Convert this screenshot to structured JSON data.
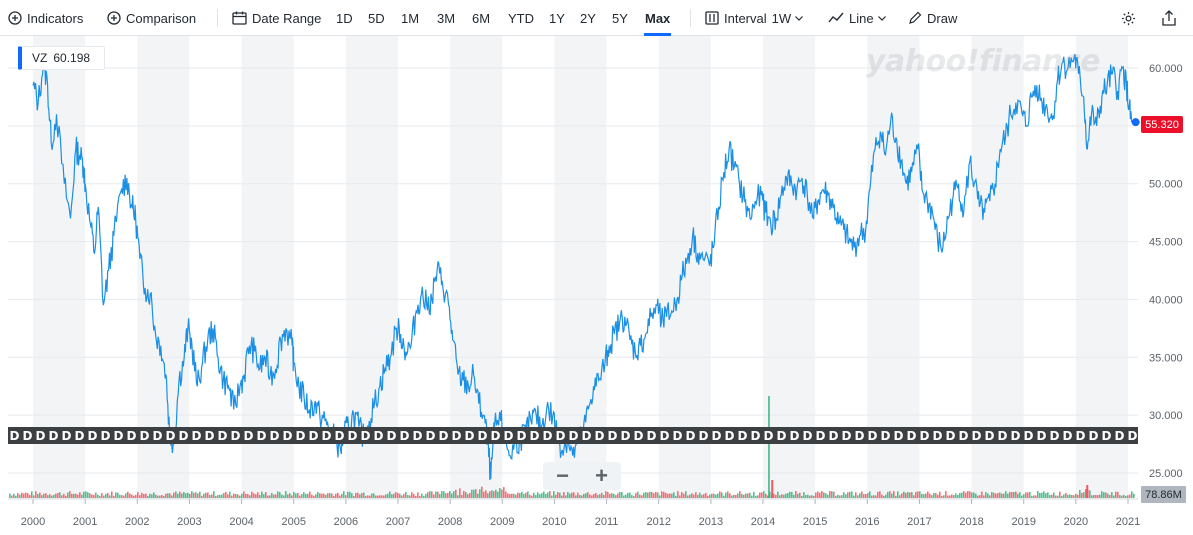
{
  "toolbar": {
    "indicators": "Indicators",
    "comparison": "Comparison",
    "date_range": "Date Range",
    "ranges": [
      "1D",
      "5D",
      "1M",
      "3M",
      "6M",
      "YTD",
      "1Y",
      "2Y",
      "5Y",
      "Max"
    ],
    "active_range": "Max",
    "interval_label": "Interval",
    "interval_value": "1W",
    "line_label": "Line",
    "draw_label": "Draw"
  },
  "legend": {
    "symbol": "VZ",
    "value": "60.198"
  },
  "current_price": "55.320",
  "volume_label": "78.86M",
  "logo_text": "yahoo!finance",
  "dividend_marker": "D",
  "colors": {
    "line": "#1a8fe3",
    "accent": "#0f69ff",
    "price_tag": "#eb0f29",
    "vol_up": "#36b37e",
    "vol_down": "#f0575f"
  },
  "chart_data": {
    "type": "line",
    "series": [
      {
        "name": "VZ"
      }
    ],
    "x_ticks": [
      "2000",
      "2001",
      "2002",
      "2003",
      "2004",
      "2005",
      "2006",
      "2007",
      "2008",
      "2009",
      "2010",
      "2011",
      "2012",
      "2013",
      "2014",
      "2015",
      "2016",
      "2017",
      "2018",
      "2019",
      "2020",
      "2021"
    ],
    "y_ticks": [
      "25.000",
      "30.000",
      "35.000",
      "40.000",
      "45.000",
      "50.000",
      "55.000",
      "60.000"
    ],
    "ylim": [
      24,
      62.5
    ],
    "xlim": [
      2000,
      2021.2
    ],
    "points": [
      [
        2000.0,
        58.5
      ],
      [
        2000.1,
        57.0
      ],
      [
        2000.2,
        60.5
      ],
      [
        2000.28,
        58.5
      ],
      [
        2000.35,
        53.5
      ],
      [
        2000.45,
        56.0
      ],
      [
        2000.6,
        50.0
      ],
      [
        2000.72,
        47.0
      ],
      [
        2000.82,
        53.0
      ],
      [
        2000.9,
        52.5
      ],
      [
        2000.97,
        51.5
      ],
      [
        2001.0,
        50.0
      ],
      [
        2001.1,
        46.5
      ],
      [
        2001.18,
        44.0
      ],
      [
        2001.25,
        48.0
      ],
      [
        2001.35,
        39.5
      ],
      [
        2001.45,
        42.5
      ],
      [
        2001.55,
        45.5
      ],
      [
        2001.7,
        49.5
      ],
      [
        2001.8,
        50.5
      ],
      [
        2001.9,
        48.0
      ],
      [
        2001.97,
        47.0
      ],
      [
        2002.05,
        43.5
      ],
      [
        2002.15,
        41.0
      ],
      [
        2002.25,
        40.5
      ],
      [
        2002.35,
        37.0
      ],
      [
        2002.45,
        36.0
      ],
      [
        2002.55,
        33.5
      ],
      [
        2002.62,
        28.5
      ],
      [
        2002.7,
        27.5
      ],
      [
        2002.8,
        33.0
      ],
      [
        2002.9,
        35.0
      ],
      [
        2002.97,
        37.5
      ],
      [
        2003.05,
        36.0
      ],
      [
        2003.15,
        32.5
      ],
      [
        2003.25,
        34.5
      ],
      [
        2003.35,
        36.5
      ],
      [
        2003.45,
        37.5
      ],
      [
        2003.55,
        35.0
      ],
      [
        2003.65,
        33.0
      ],
      [
        2003.75,
        32.5
      ],
      [
        2003.85,
        30.5
      ],
      [
        2003.97,
        32.5
      ],
      [
        2004.05,
        33.5
      ],
      [
        2004.15,
        36.0
      ],
      [
        2004.25,
        35.5
      ],
      [
        2004.35,
        34.0
      ],
      [
        2004.45,
        35.0
      ],
      [
        2004.55,
        33.5
      ],
      [
        2004.65,
        34.0
      ],
      [
        2004.75,
        36.5
      ],
      [
        2004.85,
        37.5
      ],
      [
        2004.97,
        36.0
      ],
      [
        2005.0,
        34.5
      ],
      [
        2005.1,
        32.5
      ],
      [
        2005.2,
        31.5
      ],
      [
        2005.3,
        30.5
      ],
      [
        2005.4,
        31.0
      ],
      [
        2005.5,
        30.0
      ],
      [
        2005.6,
        29.5
      ],
      [
        2005.7,
        28.5
      ],
      [
        2005.8,
        28.0
      ],
      [
        2005.9,
        27.0
      ],
      [
        2005.97,
        28.5
      ],
      [
        2006.05,
        29.0
      ],
      [
        2006.15,
        30.0
      ],
      [
        2006.25,
        29.0
      ],
      [
        2006.35,
        28.0
      ],
      [
        2006.45,
        29.5
      ],
      [
        2006.55,
        31.0
      ],
      [
        2006.65,
        32.5
      ],
      [
        2006.75,
        34.0
      ],
      [
        2006.85,
        35.0
      ],
      [
        2006.97,
        37.5
      ],
      [
        2007.05,
        37.0
      ],
      [
        2007.15,
        35.5
      ],
      [
        2007.25,
        36.0
      ],
      [
        2007.35,
        39.0
      ],
      [
        2007.45,
        40.5
      ],
      [
        2007.55,
        39.5
      ],
      [
        2007.65,
        40.0
      ],
      [
        2007.75,
        42.5
      ],
      [
        2007.85,
        41.5
      ],
      [
        2007.97,
        39.5
      ],
      [
        2008.05,
        36.5
      ],
      [
        2008.15,
        33.5
      ],
      [
        2008.25,
        33.0
      ],
      [
        2008.35,
        32.5
      ],
      [
        2008.45,
        33.5
      ],
      [
        2008.55,
        31.0
      ],
      [
        2008.65,
        30.0
      ],
      [
        2008.72,
        27.5
      ],
      [
        2008.78,
        24.5
      ],
      [
        2008.85,
        29.0
      ],
      [
        2008.97,
        29.5
      ],
      [
        2009.05,
        28.0
      ],
      [
        2009.15,
        26.5
      ],
      [
        2009.25,
        27.5
      ],
      [
        2009.35,
        28.0
      ],
      [
        2009.45,
        28.5
      ],
      [
        2009.55,
        29.5
      ],
      [
        2009.65,
        30.0
      ],
      [
        2009.75,
        29.0
      ],
      [
        2009.85,
        30.5
      ],
      [
        2009.97,
        30.0
      ],
      [
        2010.05,
        28.5
      ],
      [
        2010.15,
        27.0
      ],
      [
        2010.25,
        28.0
      ],
      [
        2010.35,
        26.5
      ],
      [
        2010.45,
        27.5
      ],
      [
        2010.55,
        28.5
      ],
      [
        2010.65,
        30.5
      ],
      [
        2010.75,
        32.5
      ],
      [
        2010.85,
        33.0
      ],
      [
        2010.97,
        34.5
      ],
      [
        2011.05,
        36.0
      ],
      [
        2011.15,
        37.0
      ],
      [
        2011.25,
        38.0
      ],
      [
        2011.35,
        38.5
      ],
      [
        2011.45,
        36.5
      ],
      [
        2011.55,
        35.5
      ],
      [
        2011.65,
        36.0
      ],
      [
        2011.75,
        37.0
      ],
      [
        2011.85,
        38.5
      ],
      [
        2011.97,
        39.5
      ],
      [
        2012.05,
        38.0
      ],
      [
        2012.15,
        38.5
      ],
      [
        2012.25,
        39.0
      ],
      [
        2012.35,
        40.0
      ],
      [
        2012.45,
        42.0
      ],
      [
        2012.55,
        43.5
      ],
      [
        2012.65,
        45.5
      ],
      [
        2012.75,
        44.0
      ],
      [
        2012.85,
        43.5
      ],
      [
        2012.97,
        43.0
      ],
      [
        2013.05,
        44.5
      ],
      [
        2013.15,
        48.0
      ],
      [
        2013.25,
        51.0
      ],
      [
        2013.35,
        53.0
      ],
      [
        2013.45,
        51.5
      ],
      [
        2013.55,
        50.0
      ],
      [
        2013.65,
        48.5
      ],
      [
        2013.75,
        47.0
      ],
      [
        2013.85,
        48.5
      ],
      [
        2013.97,
        49.0
      ],
      [
        2014.05,
        47.5
      ],
      [
        2014.15,
        46.5
      ],
      [
        2014.25,
        47.0
      ],
      [
        2014.35,
        49.0
      ],
      [
        2014.45,
        50.5
      ],
      [
        2014.55,
        50.0
      ],
      [
        2014.65,
        49.5
      ],
      [
        2014.75,
        50.5
      ],
      [
        2014.85,
        49.0
      ],
      [
        2014.97,
        47.0
      ],
      [
        2015.05,
        48.5
      ],
      [
        2015.15,
        49.5
      ],
      [
        2015.25,
        49.0
      ],
      [
        2015.35,
        48.0
      ],
      [
        2015.45,
        46.5
      ],
      [
        2015.55,
        46.0
      ],
      [
        2015.65,
        45.0
      ],
      [
        2015.75,
        44.5
      ],
      [
        2015.85,
        45.5
      ],
      [
        2015.97,
        46.0
      ],
      [
        2016.05,
        49.5
      ],
      [
        2016.15,
        53.0
      ],
      [
        2016.25,
        54.5
      ],
      [
        2016.35,
        52.5
      ],
      [
        2016.45,
        55.5
      ],
      [
        2016.55,
        54.0
      ],
      [
        2016.65,
        52.0
      ],
      [
        2016.75,
        50.0
      ],
      [
        2016.85,
        51.0
      ],
      [
        2016.97,
        53.0
      ],
      [
        2017.05,
        49.5
      ],
      [
        2017.15,
        48.5
      ],
      [
        2017.25,
        47.5
      ],
      [
        2017.35,
        45.0
      ],
      [
        2017.45,
        44.5
      ],
      [
        2017.55,
        47.0
      ],
      [
        2017.65,
        49.0
      ],
      [
        2017.75,
        50.0
      ],
      [
        2017.85,
        47.5
      ],
      [
        2017.97,
        52.0
      ],
      [
        2018.05,
        50.0
      ],
      [
        2018.15,
        48.0
      ],
      [
        2018.25,
        47.5
      ],
      [
        2018.35,
        48.5
      ],
      [
        2018.45,
        50.0
      ],
      [
        2018.55,
        53.0
      ],
      [
        2018.65,
        54.0
      ],
      [
        2018.75,
        56.0
      ],
      [
        2018.85,
        57.0
      ],
      [
        2018.97,
        56.0
      ],
      [
        2019.05,
        55.0
      ],
      [
        2019.15,
        57.5
      ],
      [
        2019.25,
        58.5
      ],
      [
        2019.35,
        57.0
      ],
      [
        2019.45,
        56.5
      ],
      [
        2019.55,
        55.5
      ],
      [
        2019.65,
        59.0
      ],
      [
        2019.75,
        60.5
      ],
      [
        2019.85,
        60.0
      ],
      [
        2019.97,
        61.0
      ],
      [
        2020.05,
        59.5
      ],
      [
        2020.15,
        57.5
      ],
      [
        2020.22,
        53.0
      ],
      [
        2020.3,
        56.0
      ],
      [
        2020.4,
        55.0
      ],
      [
        2020.5,
        57.5
      ],
      [
        2020.6,
        58.5
      ],
      [
        2020.7,
        59.5
      ],
      [
        2020.8,
        58.0
      ],
      [
        2020.9,
        60.0
      ],
      [
        2020.97,
        58.5
      ],
      [
        2021.02,
        56.5
      ],
      [
        2021.07,
        55.32
      ]
    ]
  }
}
